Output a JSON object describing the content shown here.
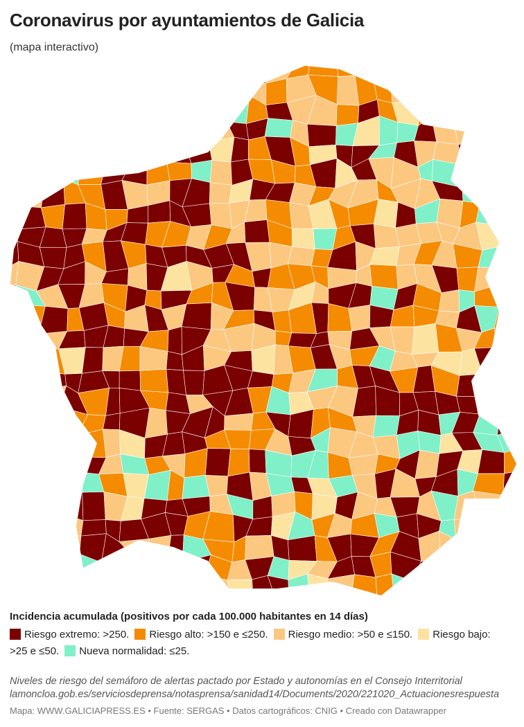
{
  "title": "Coronavirus por ayuntamientos de Galicia",
  "subtitle": "(mapa interactivo)",
  "legend": {
    "title": "Incidencia acumulada (positivos por cada 100.000 habitantes en 14 días)",
    "items": [
      {
        "label": "Riesgo extremo: >250.",
        "color": "#7b0000"
      },
      {
        "label": "Riesgo alto: >150 e ≤250.",
        "color": "#f58b00"
      },
      {
        "label": "Riesgo medio: >50 e ≤150.",
        "color": "#fcc77f"
      },
      {
        "label": "Riesgo bajo: >25 e ≤50.",
        "color": "#fde3a0"
      },
      {
        "label": "Nueva normalidad: ≤25.",
        "color": "#7ff0c8"
      }
    ]
  },
  "notes": [
    "Niveles de riesgo del semáforo de alertas pactado por Estado y autonomías en el Consejo Interritorial",
    "lamoncloa.gob.es/serviciosdeprensa/notasprensa/sanidad14/Documents/2020/221020_Actuacionesrespuesta"
  ],
  "footer": "Mapa: WWW.GALICIAPRESS.ES • Fuente: SERGAS • Datos cartográficos: CNIG • Creado con Datawrapper"
}
